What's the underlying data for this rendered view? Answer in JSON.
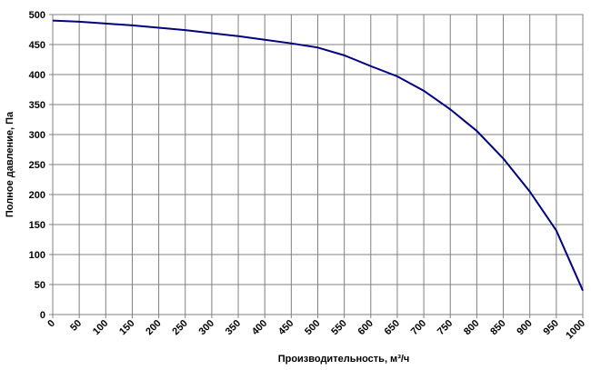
{
  "chart_data": {
    "type": "line",
    "x_label": "Производительность, м³/ч",
    "y_label": "Полное давление, Па",
    "x": [
      0,
      50,
      100,
      150,
      200,
      250,
      300,
      350,
      400,
      450,
      500,
      550,
      600,
      650,
      700,
      750,
      800,
      850,
      900,
      950,
      1000
    ],
    "series": [
      {
        "color": "#000080",
        "values": [
          490,
          488,
          485,
          482,
          478,
          474,
          469,
          464,
          458,
          452,
          445,
          432,
          414,
          397,
          373,
          342,
          306,
          260,
          205,
          140,
          40
        ]
      }
    ],
    "xlim": [
      0,
      1000
    ],
    "xticks": [
      0,
      50,
      100,
      150,
      200,
      250,
      300,
      350,
      400,
      450,
      500,
      550,
      600,
      650,
      700,
      750,
      800,
      850,
      900,
      950,
      1000
    ],
    "ylim": [
      0,
      500
    ],
    "yticks": [
      0,
      50,
      100,
      150,
      200,
      250,
      300,
      350,
      400,
      450,
      500
    ],
    "grid": true
  }
}
